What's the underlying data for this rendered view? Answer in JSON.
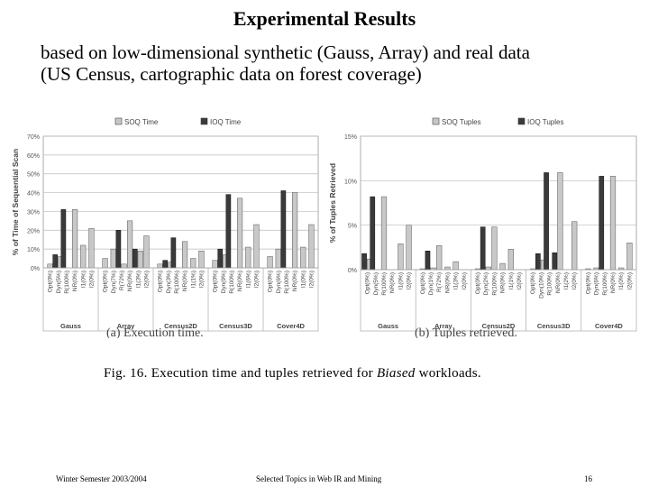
{
  "slide": {
    "title": "Experimental Results",
    "subtitle_line1": "based on low-dimensional synthetic (Gauss, Array) and real data",
    "subtitle_line2": "(US Census, cartographic data on forest coverage)",
    "figure_caption_prefix": "Fig. 16.   Execution time and tuples retrieved for ",
    "figure_caption_emph": "Biased",
    "figure_caption_suffix": " workloads.",
    "footer_left": "Winter Semester 2003/2004",
    "footer_center": "Selected Topics in Web IR and Mining",
    "footer_right": "16"
  },
  "chart_data": [
    {
      "type": "bar",
      "caption": "(a) Execution time.",
      "ylabel": "% of Time of Sequential Scan",
      "ylim": [
        0,
        70
      ],
      "yticks": [
        "0%",
        "10%",
        "20%",
        "30%",
        "40%",
        "50%",
        "60%",
        "70%"
      ],
      "ytick_values": [
        0,
        10,
        20,
        30,
        40,
        50,
        60,
        70
      ],
      "legend": [
        {
          "name": "SOQ Time",
          "color": "#c8c8c8"
        },
        {
          "name": "IOQ Time",
          "color": "#3a3a3a"
        }
      ],
      "groups": [
        {
          "name": "Gauss",
          "bars": [
            {
              "label": "Opt(0%)",
              "soq": 2,
              "ioq": null
            },
            {
              "label": "Dyn(5%)",
              "soq": 6,
              "ioq": 7
            },
            {
              "label": "R(100%)",
              "soq": 0,
              "ioq": 31
            },
            {
              "label": "NR(0%)",
              "soq": 31,
              "ioq": null
            },
            {
              "label": "I1(0%)",
              "soq": 12,
              "ioq": null
            },
            {
              "label": "I2(0%)",
              "soq": 21,
              "ioq": null
            }
          ]
        },
        {
          "name": "Array",
          "bars": [
            {
              "label": "Opt(0%)",
              "soq": 5,
              "ioq": null
            },
            {
              "label": "Dyn(7%)",
              "soq": 10,
              "ioq": null
            },
            {
              "label": "R(72%)",
              "soq": 2,
              "ioq": 20
            },
            {
              "label": "NR(0%)",
              "soq": 25,
              "ioq": null
            },
            {
              "label": "I1(3%)",
              "soq": 9,
              "ioq": 10
            },
            {
              "label": "I2(0%)",
              "soq": 17,
              "ioq": null
            }
          ]
        },
        {
          "name": "Census2D",
          "bars": [
            {
              "label": "Opt(0%)",
              "soq": 2,
              "ioq": null
            },
            {
              "label": "Dyn(3%)",
              "soq": 3,
              "ioq": 4
            },
            {
              "label": "R(100%)",
              "soq": 0,
              "ioq": 16
            },
            {
              "label": "NR(0%)",
              "soq": 14,
              "ioq": null
            },
            {
              "label": "I1(1%)",
              "soq": 5,
              "ioq": null
            },
            {
              "label": "I2(0%)",
              "soq": 9,
              "ioq": null
            }
          ]
        },
        {
          "name": "Census3D",
          "bars": [
            {
              "label": "Opt(0%)",
              "soq": 4,
              "ioq": null
            },
            {
              "label": "Dyn(9%)",
              "soq": 7,
              "ioq": 10
            },
            {
              "label": "R(100%)",
              "soq": 0,
              "ioq": 39
            },
            {
              "label": "NR(0%)",
              "soq": 37,
              "ioq": null
            },
            {
              "label": "I1(6%)",
              "soq": 11,
              "ioq": null
            },
            {
              "label": "I2(0%)",
              "soq": 23,
              "ioq": null
            }
          ]
        },
        {
          "name": "Cover4D",
          "bars": [
            {
              "label": "Opt(0%)",
              "soq": 6,
              "ioq": null
            },
            {
              "label": "Dyn(6%)",
              "soq": 10,
              "ioq": null
            },
            {
              "label": "R(100%)",
              "soq": 0,
              "ioq": 41
            },
            {
              "label": "NR(0%)",
              "soq": 40,
              "ioq": null
            },
            {
              "label": "I1(0%)",
              "soq": 11,
              "ioq": null
            },
            {
              "label": "I2(0%)",
              "soq": 23,
              "ioq": null
            }
          ]
        }
      ]
    },
    {
      "type": "bar",
      "caption": "(b) Tuples retrieved.",
      "ylabel": "% of Tuples Retrieved",
      "ylim": [
        0,
        15
      ],
      "yticks": [
        "0%",
        "5%",
        "10%",
        "15%"
      ],
      "ytick_values": [
        0,
        5,
        10,
        15
      ],
      "legend": [
        {
          "name": "SOQ Tuples",
          "color": "#c8c8c8"
        },
        {
          "name": "IOQ Tuples",
          "color": "#3a3a3a"
        }
      ],
      "groups": [
        {
          "name": "Gauss",
          "bars": [
            {
              "label": "Opt(0%)",
              "soq": 1.2,
              "ioq": 1.8
            },
            {
              "label": "Dyn(5%)",
              "soq": 0,
              "ioq": 8.2
            },
            {
              "label": "R(100%)",
              "soq": 8.2,
              "ioq": null
            },
            {
              "label": "NR(0%)",
              "soq": 0,
              "ioq": null
            },
            {
              "label": "I1(0%)",
              "soq": 2.9,
              "ioq": null
            },
            {
              "label": "I2(0%)",
              "soq": 5,
              "ioq": null
            }
          ]
        },
        {
          "name": "Array",
          "bars": [
            {
              "label": "Opt(0%)",
              "soq": 0.1,
              "ioq": null
            },
            {
              "label": "Dyn(1%)",
              "soq": 0.2,
              "ioq": 2.1
            },
            {
              "label": "R(72%)",
              "soq": 2.7,
              "ioq": null
            },
            {
              "label": "NR(0%)",
              "soq": 0.3,
              "ioq": null
            },
            {
              "label": "I1(3%)",
              "soq": 0.9,
              "ioq": null
            },
            {
              "label": "I2(0%)",
              "soq": 0,
              "ioq": null
            }
          ]
        },
        {
          "name": "Census2D",
          "bars": [
            {
              "label": "Opt(0%)",
              "soq": 0.1,
              "ioq": null
            },
            {
              "label": "Dyn(2%)",
              "soq": 0.3,
              "ioq": 4.8
            },
            {
              "label": "R(100%)",
              "soq": 4.8,
              "ioq": null
            },
            {
              "label": "NR(0%)",
              "soq": 0.7,
              "ioq": null
            },
            {
              "label": "I1(1%)",
              "soq": 2.3,
              "ioq": null
            },
            {
              "label": "I2(0%)",
              "soq": 0,
              "ioq": null
            }
          ]
        },
        {
          "name": "Census3D",
          "bars": [
            {
              "label": "Opt(0%)",
              "soq": 0.1,
              "ioq": null
            },
            {
              "label": "Dyn(10%)",
              "soq": 1.1,
              "ioq": 1.8
            },
            {
              "label": "R(100%)",
              "soq": 0,
              "ioq": 10.9
            },
            {
              "label": "NR(0%)",
              "soq": 10.9,
              "ioq": 1.9
            },
            {
              "label": "I1(2%)",
              "soq": 0,
              "ioq": null
            },
            {
              "label": "I2(0%)",
              "soq": 5.4,
              "ioq": null
            }
          ]
        },
        {
          "name": "Cover4D",
          "bars": [
            {
              "label": "Opt(0%)",
              "soq": 0.1,
              "ioq": null
            },
            {
              "label": "Dyn(6%)",
              "soq": 0.2,
              "ioq": null
            },
            {
              "label": "R(100%)",
              "soq": 0,
              "ioq": 10.5
            },
            {
              "label": "NR(0%)",
              "soq": 10.5,
              "ioq": null
            },
            {
              "label": "I1(0%)",
              "soq": 0.2,
              "ioq": null
            },
            {
              "label": "I2(0%)",
              "soq": 3,
              "ioq": null
            }
          ]
        }
      ]
    }
  ]
}
